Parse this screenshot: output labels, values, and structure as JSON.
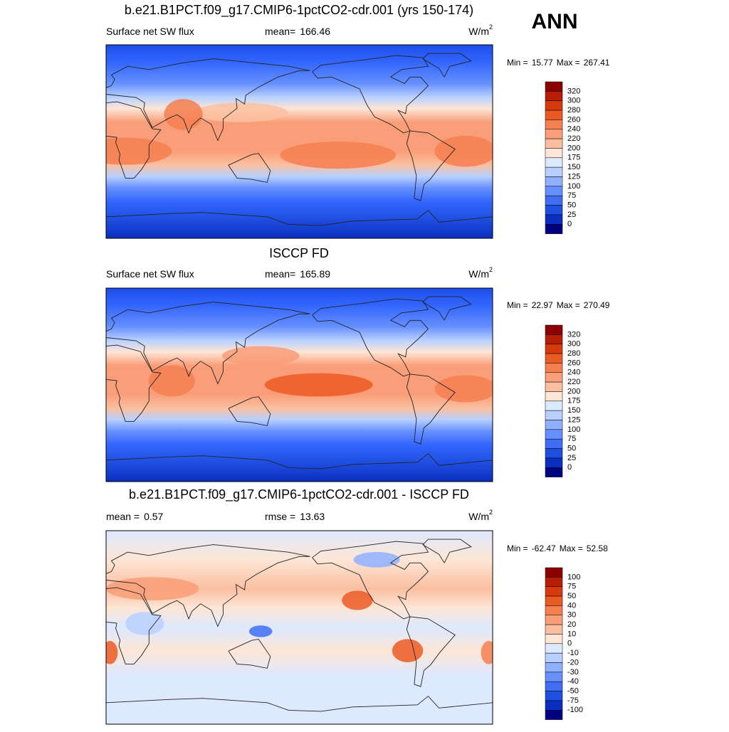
{
  "season": "ANN",
  "panels": [
    {
      "title": "b.e21.B1PCT.f09_g17.CMIP6-1pctCO2-cdr.001 (yrs 150-174)",
      "left": {
        "text": "Surface net SW flux"
      },
      "center": {
        "label": "mean=",
        "value": 166.46
      },
      "units": {
        "base": "W/m",
        "sup": "2"
      },
      "min_label": "Min =",
      "min": 15.77,
      "max_label": "Max =",
      "max": 267.41,
      "colorbar": {
        "levels": [
          320,
          300,
          280,
          260,
          240,
          220,
          200,
          175,
          150,
          125,
          100,
          75,
          50,
          25,
          0
        ],
        "colors": [
          "#8b0000",
          "#b81e04",
          "#d63a0c",
          "#ec5a24",
          "#f57f50",
          "#f99e78",
          "#fbbfa0",
          "#fde6d6",
          "#dde9ff",
          "#b8d0ff",
          "#8fb0ff",
          "#6690ff",
          "#3f6ef5",
          "#1f4fe0",
          "#0a2fc0",
          "#000080"
        ]
      }
    },
    {
      "title": "ISCCP FD",
      "left": {
        "text": "Surface net SW flux"
      },
      "center": {
        "label": "mean=",
        "value": 165.89
      },
      "units": {
        "base": "W/m",
        "sup": "2"
      },
      "min_label": "Min =",
      "min": 22.97,
      "max_label": "Max =",
      "max": 270.49,
      "colorbar": {
        "levels": [
          320,
          300,
          280,
          260,
          240,
          220,
          200,
          175,
          150,
          125,
          100,
          75,
          50,
          25,
          0
        ],
        "colors": [
          "#8b0000",
          "#b81e04",
          "#d63a0c",
          "#ec5a24",
          "#f57f50",
          "#f99e78",
          "#fbbfa0",
          "#fde6d6",
          "#dde9ff",
          "#b8d0ff",
          "#8fb0ff",
          "#6690ff",
          "#3f6ef5",
          "#1f4fe0",
          "#0a2fc0",
          "#000080"
        ]
      }
    },
    {
      "title": "b.e21.B1PCT.f09_g17.CMIP6-1pctCO2-cdr.001 - ISCCP FD",
      "left": {
        "label": "mean =",
        "value": 0.57
      },
      "center": {
        "label": "rmse =",
        "value": 13.63
      },
      "units": {
        "base": "W/m",
        "sup": "2"
      },
      "min_label": "Min =",
      "min": -62.47,
      "max_label": "Max =",
      "max": 52.58,
      "colorbar": {
        "levels": [
          100,
          75,
          50,
          40,
          30,
          20,
          10,
          0,
          -10,
          -20,
          -30,
          -40,
          -50,
          -75,
          -100
        ],
        "colors": [
          "#8b0000",
          "#b81e04",
          "#d63a0c",
          "#ec5a24",
          "#f57f50",
          "#f99e78",
          "#fbbfa0",
          "#fde6d6",
          "#dde9ff",
          "#b8d0ff",
          "#8fb0ff",
          "#6690ff",
          "#3f6ef5",
          "#1f4fe0",
          "#0a2fc0",
          "#000080"
        ]
      }
    }
  ]
}
